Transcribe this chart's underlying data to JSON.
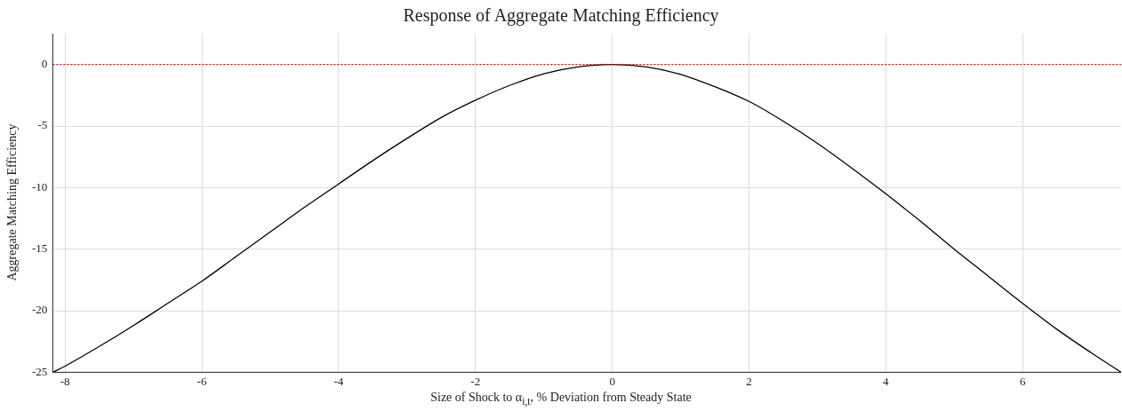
{
  "chart_data": {
    "type": "line",
    "title": "Response of Aggregate Matching Efficiency",
    "xlabel": "Size of Shock to α$_{i,t}$, % Deviation from Steady State",
    "ylabel": "Aggregate Matching Efficiency",
    "x": [
      -8.18,
      -8,
      -7.5,
      -7,
      -6.5,
      -6,
      -5.5,
      -5,
      -4.5,
      -4,
      -3.5,
      -3,
      -2.5,
      -2,
      -1.5,
      -1,
      -0.5,
      0,
      0.5,
      1,
      1.5,
      2,
      2.5,
      3,
      3.5,
      4,
      4.5,
      5,
      5.5,
      6,
      6.5,
      7,
      7.44
    ],
    "series": [
      {
        "color": "#000000",
        "values": [
          -25,
          -24.5,
          -22.9,
          -21.2,
          -19.4,
          -17.6,
          -15.6,
          -13.6,
          -11.6,
          -9.7,
          -7.8,
          -6.0,
          -4.3,
          -2.9,
          -1.7,
          -0.75,
          -0.2,
          0,
          -0.2,
          -0.8,
          -1.8,
          -3.0,
          -4.6,
          -6.4,
          -8.4,
          -10.5,
          -12.7,
          -15.0,
          -17.2,
          -19.4,
          -21.5,
          -23.4,
          -25
        ]
      }
    ],
    "xlim": [
      -8.18,
      7.44
    ],
    "ylim": [
      -25,
      2.5
    ],
    "xticks": [
      -8,
      -6,
      -4,
      -2,
      0,
      2,
      4,
      6
    ],
    "yticks": [
      -25,
      -20,
      -15,
      -10,
      -5,
      0
    ],
    "ref_lines": [
      {
        "axis": "y",
        "value": 0,
        "color": "#ff0000",
        "line_style": "dotted"
      }
    ],
    "grid": true,
    "legend": false,
    "marker": "none",
    "line_style": "solid"
  }
}
